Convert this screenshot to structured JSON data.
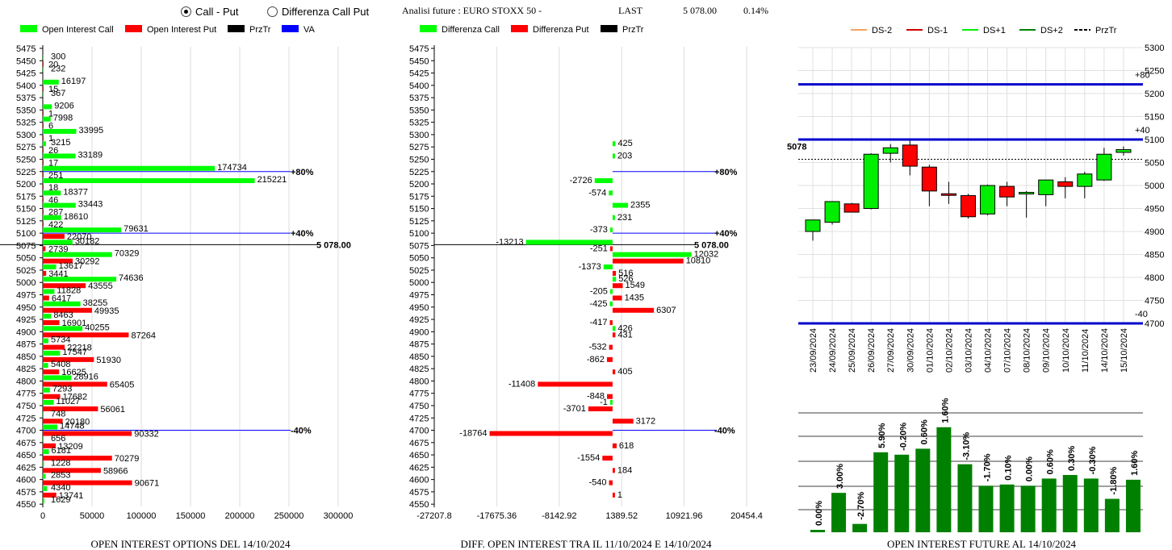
{
  "header": {
    "mode_options": [
      "Call - Put",
      "Differenza Call Put"
    ],
    "mode_selected": 0,
    "title": "Analisi future : EURO STOXX 50 -",
    "last_label": "LAST",
    "last_value": "5 078.00",
    "last_change": "0.14%"
  },
  "colors": {
    "call": "#00ff00",
    "put": "#ff0000",
    "prztr": "#000000",
    "va": "#0000ff",
    "fut_bar": "#008000",
    "ds2": "#f4a460",
    "ds1": "#cc0000",
    "ds1p": "#00ee00",
    "ds2p": "#008000"
  },
  "chart_data": [
    {
      "type": "bar",
      "title": "OPEN INTEREST OPTIONS DEL 14/10/2024",
      "legend": [
        "Open Interest Call",
        "Open Interest Put",
        "PrzTr",
        "VA"
      ],
      "strikes": [
        5475,
        5450,
        5425,
        5400,
        5375,
        5350,
        5325,
        5300,
        5275,
        5250,
        5225,
        5200,
        5175,
        5150,
        5125,
        5100,
        5075,
        5050,
        5025,
        5000,
        4975,
        4950,
        4925,
        4900,
        4875,
        4850,
        4825,
        4800,
        4775,
        4750,
        4725,
        4700,
        4675,
        4650,
        4625,
        4600,
        4575,
        4550
      ],
      "series": [
        {
          "name": "Open Interest Call",
          "values": [
            null,
            300,
            232,
            16197,
            367,
            9206,
            7998,
            33995,
            3215,
            33189,
            174734,
            215221,
            18377,
            33443,
            18610,
            79631,
            30182,
            70329,
            13617,
            74636,
            11828,
            38255,
            8463,
            40255,
            5734,
            17547,
            5408,
            28916,
            7293,
            11027,
            748,
            14748,
            656,
            6181,
            1228,
            2853,
            4340,
            1629
          ]
        },
        {
          "name": "Open Interest Put",
          "values": [
            null,
            20,
            null,
            15,
            null,
            1,
            6,
            1,
            26,
            17,
            251,
            18,
            46,
            287,
            422,
            22070,
            2739,
            30292,
            3441,
            43555,
            6417,
            49935,
            16901,
            87264,
            22218,
            51930,
            16625,
            65405,
            17682,
            56061,
            20180,
            90332,
            13209,
            70279,
            58966,
            90671,
            13741,
            null
          ]
        }
      ],
      "price_line": {
        "strike": 5075,
        "label": "5 078.00"
      },
      "va_lines": [
        {
          "strike": 5225,
          "label": "+80%"
        },
        {
          "strike": 5100,
          "label": "+40%"
        },
        {
          "strike": 4700,
          "label": "-40%"
        }
      ],
      "x_ticks": [
        0,
        50000,
        100000,
        150000,
        200000,
        250000,
        300000
      ],
      "xlim": [
        0,
        300000
      ]
    },
    {
      "type": "bar",
      "title": "DIFF. OPEN INTEREST TRA IL 11/10/2024 E 14/10/2024",
      "legend": [
        "Differenza Call",
        "Differenza Put",
        "PrzTr"
      ],
      "strikes": [
        5475,
        5450,
        5425,
        5400,
        5375,
        5350,
        5325,
        5300,
        5275,
        5250,
        5225,
        5200,
        5175,
        5150,
        5125,
        5100,
        5075,
        5050,
        5025,
        5000,
        4975,
        4950,
        4925,
        4900,
        4875,
        4850,
        4825,
        4800,
        4775,
        4750,
        4725,
        4700,
        4675,
        4650,
        4625,
        4600,
        4575,
        4550
      ],
      "series": [
        {
          "name": "Differenza Call",
          "values": [
            null,
            null,
            null,
            null,
            null,
            null,
            null,
            null,
            425,
            203,
            null,
            -2726,
            -574,
            2355,
            231,
            -373,
            -13213,
            12032,
            -1373,
            526,
            -205,
            -425,
            null,
            426,
            null,
            null,
            null,
            null,
            null,
            -1,
            null,
            null,
            null,
            null,
            null,
            null,
            null,
            null
          ]
        },
        {
          "name": "Differenza Put",
          "values": [
            null,
            null,
            null,
            null,
            null,
            null,
            null,
            null,
            null,
            null,
            null,
            null,
            null,
            null,
            null,
            null,
            -251,
            10810,
            516,
            1549,
            1435,
            6307,
            -417,
            431,
            -532,
            -862,
            405,
            -11408,
            -848,
            -3701,
            3172,
            -18764,
            618,
            -1554,
            184,
            -540,
            1,
            null
          ]
        }
      ],
      "call_labels_right": [
        true,
        true,
        false,
        false,
        false,
        true,
        false,
        false,
        false,
        true,
        false,
        false,
        false,
        false,
        false,
        false,
        false,
        false,
        false,
        false,
        false,
        false,
        false,
        false,
        false,
        false,
        false,
        false,
        false,
        false,
        false,
        false,
        false,
        false,
        false,
        false,
        false,
        false
      ],
      "price_line": {
        "strike": 5075,
        "label": "5 078.00"
      },
      "va_lines": [
        {
          "strike": 5225,
          "label": "+80%"
        },
        {
          "strike": 5100,
          "label": "+40%"
        },
        {
          "strike": 4700,
          "label": "-40%"
        }
      ],
      "x_ticks": [
        "-27207.8",
        "-17675.36",
        "-8142.92",
        "1389.52",
        "10921.96",
        "20454.4"
      ],
      "xlim": [
        -27207.8,
        20454.4
      ]
    },
    {
      "type": "candlestick",
      "legend": [
        "DS-2",
        "DS-1",
        "DS+1",
        "DS+2",
        "PrzTr"
      ],
      "dates": [
        "23/09/2024",
        "24/09/2024",
        "25/09/2024",
        "26/09/2024",
        "27/09/2024",
        "30/09/2024",
        "01/10/2024",
        "02/10/2024",
        "03/10/2024",
        "04/10/2024",
        "07/10/2024",
        "08/10/2024",
        "09/10/2024",
        "10/10/2024",
        "11/10/2024",
        "14/10/2024",
        "15/10/2024"
      ],
      "ohlc": [
        [
          4900,
          4925,
          4880,
          4925
        ],
        [
          4920,
          4965,
          4915,
          4965
        ],
        [
          4960,
          4962,
          4942,
          4942
        ],
        [
          4950,
          5070,
          4948,
          5068
        ],
        [
          5070,
          5090,
          5050,
          5082
        ],
        [
          5088,
          5098,
          5022,
          5042
        ],
        [
          5040,
          5045,
          4955,
          4988
        ],
        [
          4982,
          5008,
          4960,
          4980
        ],
        [
          4978,
          4982,
          4928,
          4932
        ],
        [
          4938,
          5002,
          4935,
          5000
        ],
        [
          4998,
          5008,
          4955,
          4975
        ],
        [
          4982,
          4988,
          4930,
          4985
        ],
        [
          4980,
          5010,
          4955,
          5012
        ],
        [
          5008,
          5018,
          4972,
          4998
        ],
        [
          4998,
          5030,
          4972,
          5025
        ],
        [
          5012,
          5082,
          5010,
          5068
        ],
        [
          5072,
          5085,
          5065,
          5078
        ]
      ],
      "y_ticks": [
        4700,
        4750,
        4800,
        4850,
        4900,
        4950,
        5000,
        5050,
        5100,
        5150,
        5200,
        5250,
        5300
      ],
      "ylim": [
        4700,
        5300
      ],
      "price_label": "5078",
      "price": 5078,
      "levels": [
        {
          "value": 5220,
          "label": "+80"
        },
        {
          "value": 5100,
          "label": "+40"
        },
        {
          "value": 4700,
          "label": "-40"
        }
      ]
    },
    {
      "type": "bar",
      "title": "OPEN INTEREST FUTURE AL 14/10/2024",
      "labels": [
        "0.00%",
        "3.00%",
        "-2.70%",
        "5.90%",
        "-0.20%",
        "0.60%",
        "1.60%",
        "-3.10%",
        "-1.70%",
        "0.10%",
        "0.00%",
        "0.60%",
        "0.30%",
        "-0.30%",
        "-1.80%",
        "1.60%"
      ],
      "values": [
        2,
        33,
        7,
        67,
        65,
        70,
        88,
        57,
        39,
        40,
        39,
        45,
        48,
        45,
        28,
        44
      ]
    }
  ]
}
